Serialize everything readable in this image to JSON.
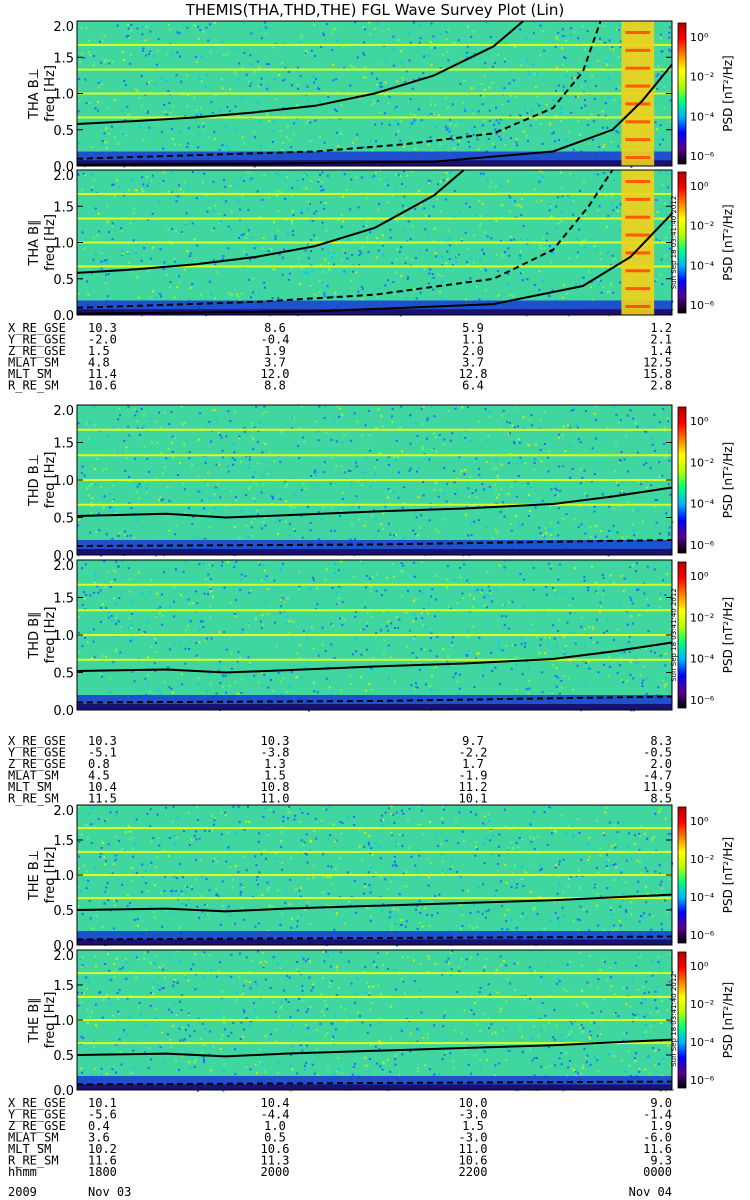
{
  "title": "THEMIS(THA,THD,THE) FGL Wave Survey Plot (Lin)",
  "colors": {
    "frame": "#000000",
    "colorbar": [
      "#000000",
      "#5a0090",
      "#0000ff",
      "#00b4ff",
      "#00ff80",
      "#b4ff00",
      "#ffff00",
      "#ff8000",
      "#ff0000",
      "#b40000"
    ]
  },
  "colorbar": {
    "label": "PSD [nT²/Hz]",
    "ticks": [
      "10⁰",
      "10⁻²",
      "10⁻⁴",
      "10⁻⁶"
    ]
  },
  "stamp": "Sun Sep 18 03:41:40 2012",
  "chart_data": [
    {
      "type": "heatmap",
      "panel": "THA B⊥",
      "ylabel": "THA B⊥",
      "ylabel2": "freq [Hz]",
      "ylim": [
        0,
        2.0
      ],
      "yticks": [
        "2.0",
        "1.5",
        "1.0",
        "0.5",
        "0.0"
      ],
      "colorbar_label": "PSD [nT²/Hz]",
      "overlays": [
        {
          "style": "solid",
          "x": [
            0,
            0.1,
            0.2,
            0.3,
            0.4,
            0.5,
            0.6,
            0.7,
            0.75
          ],
          "y": [
            0.58,
            0.62,
            0.67,
            0.74,
            0.83,
            1.0,
            1.25,
            1.65,
            2.0
          ]
        },
        {
          "style": "dashed",
          "x": [
            0,
            0.2,
            0.4,
            0.55,
            0.7,
            0.8,
            0.85,
            0.88
          ],
          "y": [
            0.1,
            0.15,
            0.2,
            0.3,
            0.45,
            0.8,
            1.3,
            2.0
          ]
        },
        {
          "style": "solid",
          "x": [
            0,
            0.3,
            0.6,
            0.8,
            0.9,
            0.95,
            1.0
          ],
          "y": [
            0.02,
            0.03,
            0.06,
            0.2,
            0.5,
            0.9,
            1.4
          ]
        }
      ]
    },
    {
      "type": "heatmap",
      "panel": "THA B∥",
      "ylabel": "THA B∥",
      "ylabel2": "freq [Hz]",
      "ylim": [
        0,
        2.0
      ],
      "yticks": [
        "2.0",
        "1.5",
        "1.0",
        "0.5",
        "0.0"
      ],
      "colorbar_label": "PSD [nT²/Hz]",
      "overlays": [
        {
          "style": "solid",
          "x": [
            0,
            0.1,
            0.2,
            0.3,
            0.4,
            0.5,
            0.6,
            0.65
          ],
          "y": [
            0.58,
            0.63,
            0.7,
            0.8,
            0.95,
            1.2,
            1.65,
            2.0
          ]
        },
        {
          "style": "dashed",
          "x": [
            0,
            0.3,
            0.5,
            0.7,
            0.8,
            0.86,
            0.9
          ],
          "y": [
            0.1,
            0.18,
            0.28,
            0.5,
            0.9,
            1.5,
            2.0
          ]
        },
        {
          "style": "solid",
          "x": [
            0,
            0.4,
            0.7,
            0.85,
            0.93,
            1.0
          ],
          "y": [
            0.02,
            0.05,
            0.15,
            0.4,
            0.8,
            1.4
          ]
        }
      ]
    },
    {
      "type": "heatmap",
      "panel": "THD B⊥",
      "ylabel": "THD B⊥",
      "ylabel2": "freq [Hz]",
      "ylim": [
        0,
        2.0
      ],
      "yticks": [
        "2.0",
        "1.5",
        "1.0",
        "0.5",
        "0.0"
      ],
      "colorbar_label": "PSD [nT²/Hz]",
      "overlays": [
        {
          "style": "solid",
          "x": [
            0,
            0.15,
            0.25,
            0.35,
            0.5,
            0.65,
            0.8,
            0.9,
            1.0
          ],
          "y": [
            0.52,
            0.55,
            0.5,
            0.53,
            0.58,
            0.62,
            0.68,
            0.78,
            0.9
          ]
        },
        {
          "style": "dashed",
          "x": [
            0,
            0.5,
            1.0
          ],
          "y": [
            0.12,
            0.14,
            0.2
          ]
        }
      ]
    },
    {
      "type": "heatmap",
      "panel": "THD B∥",
      "ylabel": "THD B∥",
      "ylabel2": "freq [Hz]",
      "ylim": [
        0,
        2.0
      ],
      "yticks": [
        "2.0",
        "1.5",
        "1.0",
        "0.5",
        "0.0"
      ],
      "colorbar_label": "PSD [nT²/Hz]",
      "overlays": [
        {
          "style": "solid",
          "x": [
            0,
            0.15,
            0.25,
            0.35,
            0.5,
            0.65,
            0.8,
            0.9,
            1.0
          ],
          "y": [
            0.52,
            0.54,
            0.5,
            0.53,
            0.58,
            0.62,
            0.68,
            0.78,
            0.9
          ]
        },
        {
          "style": "dashed",
          "x": [
            0,
            0.5,
            1.0
          ],
          "y": [
            0.1,
            0.12,
            0.18
          ]
        }
      ]
    },
    {
      "type": "heatmap",
      "panel": "THE B⊥",
      "ylabel": "THE B⊥",
      "ylabel2": "freq [Hz]",
      "ylim": [
        0,
        2.0
      ],
      "yticks": [
        "2.0",
        "1.5",
        "1.0",
        "0.5",
        "0.0"
      ],
      "colorbar_label": "PSD [nT²/Hz]",
      "overlays": [
        {
          "style": "solid",
          "x": [
            0,
            0.15,
            0.25,
            0.35,
            0.5,
            0.65,
            0.8,
            1.0
          ],
          "y": [
            0.5,
            0.52,
            0.48,
            0.52,
            0.56,
            0.6,
            0.64,
            0.72
          ]
        },
        {
          "style": "dashed",
          "x": [
            0,
            0.5,
            1.0
          ],
          "y": [
            0.08,
            0.1,
            0.12
          ]
        }
      ]
    },
    {
      "type": "heatmap",
      "panel": "THE B∥",
      "ylabel": "THE B∥",
      "ylabel2": "freq [Hz]",
      "ylim": [
        0,
        2.0
      ],
      "yticks": [
        "2.0",
        "1.5",
        "1.0",
        "0.5",
        "0.0"
      ],
      "colorbar_label": "PSD [nT²/Hz]",
      "overlays": [
        {
          "style": "solid",
          "x": [
            0,
            0.15,
            0.25,
            0.35,
            0.5,
            0.65,
            0.8,
            1.0
          ],
          "y": [
            0.5,
            0.52,
            0.48,
            0.52,
            0.56,
            0.6,
            0.64,
            0.72
          ]
        },
        {
          "style": "dashed",
          "x": [
            0,
            0.5,
            1.0
          ],
          "y": [
            0.08,
            0.1,
            0.12
          ]
        }
      ]
    }
  ],
  "ephemeris": [
    {
      "probe": "THA",
      "rows": [
        {
          "label": "X_RE_GSE",
          "values": [
            "10.3",
            "8.6",
            "5.9",
            "1.2"
          ]
        },
        {
          "label": "Y_RE_GSE",
          "values": [
            "-2.0",
            "-0.4",
            "1.1",
            "2.1"
          ]
        },
        {
          "label": "Z_RE_GSE",
          "values": [
            "1.5",
            "1.9",
            "2.0",
            "1.4"
          ]
        },
        {
          "label": "MLAT_SM",
          "values": [
            "4.8",
            "3.7",
            "3.7",
            "12.5"
          ]
        },
        {
          "label": "MLT_SM",
          "values": [
            "11.4",
            "12.0",
            "12.8",
            "15.8"
          ]
        },
        {
          "label": "R_RE_SM",
          "values": [
            "10.6",
            "8.8",
            "6.4",
            "2.8"
          ]
        }
      ]
    },
    {
      "probe": "THD",
      "rows": [
        {
          "label": "X_RE_GSE",
          "values": [
            "10.3",
            "10.3",
            "9.7",
            "8.3"
          ]
        },
        {
          "label": "Y_RE_GSE",
          "values": [
            "-5.1",
            "-3.8",
            "-2.2",
            "-0.5"
          ]
        },
        {
          "label": "Z_RE_GSE",
          "values": [
            "0.8",
            "1.3",
            "1.7",
            "2.0"
          ]
        },
        {
          "label": "MLAT_SM",
          "values": [
            "4.5",
            "1.5",
            "-1.9",
            "-4.7"
          ]
        },
        {
          "label": "MLT_SM",
          "values": [
            "10.4",
            "10.8",
            "11.2",
            "11.9"
          ]
        },
        {
          "label": "R_RE_SM",
          "values": [
            "11.5",
            "11.0",
            "10.1",
            "8.5"
          ]
        }
      ]
    },
    {
      "probe": "THE",
      "rows": [
        {
          "label": "X_RE_GSE",
          "values": [
            "10.1",
            "10.4",
            "10.0",
            "9.0"
          ]
        },
        {
          "label": "Y_RE_GSE",
          "values": [
            "-5.6",
            "-4.4",
            "-3.0",
            "-1.4"
          ]
        },
        {
          "label": "Z_RE_GSE",
          "values": [
            "0.4",
            "1.0",
            "1.5",
            "1.9"
          ]
        },
        {
          "label": "MLAT_SM",
          "values": [
            "3.6",
            "0.5",
            "-3.0",
            "-6.0"
          ]
        },
        {
          "label": "MLT_SM",
          "values": [
            "10.2",
            "10.6",
            "11.0",
            "11.6"
          ]
        },
        {
          "label": "R_RE_SM",
          "values": [
            "11.6",
            "11.3",
            "10.6",
            "9.3"
          ]
        },
        {
          "label": "hhmm",
          "values": [
            "1800",
            "2000",
            "2200",
            "0000"
          ]
        }
      ]
    }
  ],
  "time_axis": {
    "year": "2009",
    "start_date": "Nov 03",
    "end_date": "Nov 04"
  }
}
